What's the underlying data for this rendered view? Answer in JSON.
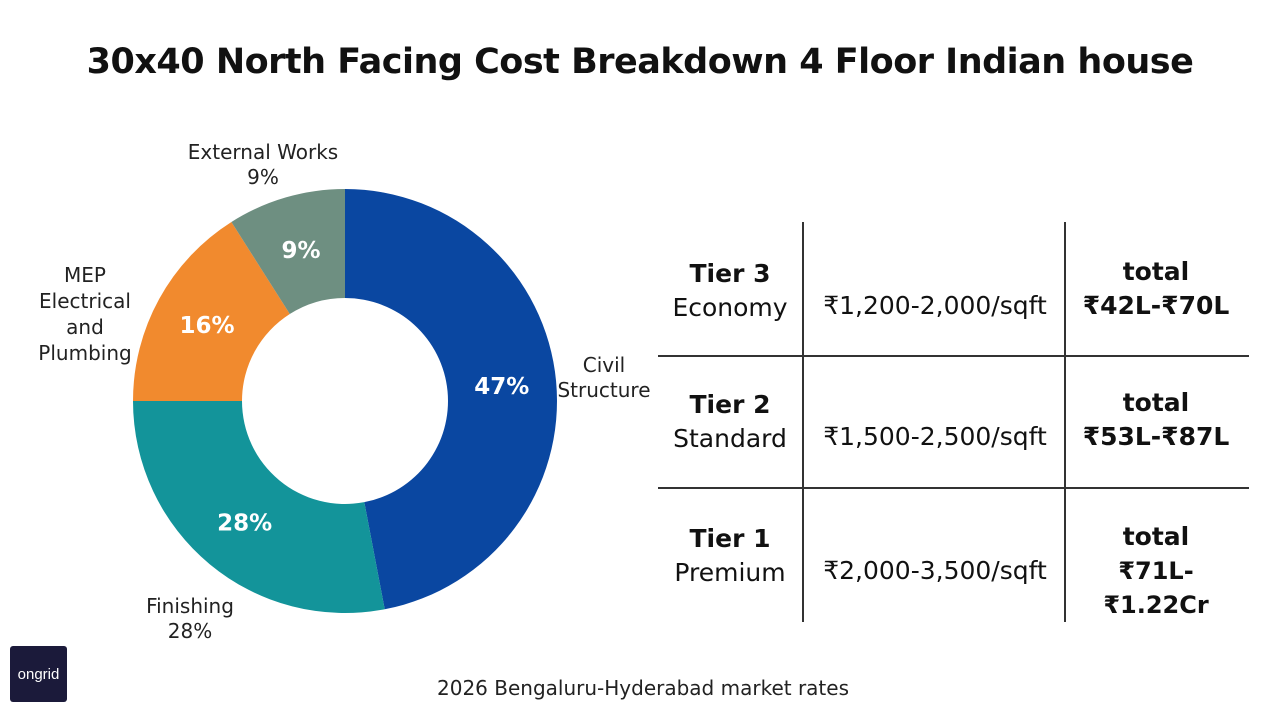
{
  "chart_data": {
    "type": "pie",
    "title": "30x40 North Facing Cost Breakdown 4 Floor Indian house",
    "slices": [
      {
        "label": "Civil Structure",
        "value": 47,
        "inner_label": "47%",
        "outer_lines": [
          "Civil",
          "Structure"
        ],
        "color": "#0a47a1"
      },
      {
        "label": "Finishing",
        "value": 28,
        "inner_label": "28%",
        "outer_lines": [
          "Finishing",
          "28%"
        ],
        "color": "#13949a"
      },
      {
        "label": "MEP Electrical and Plumbing",
        "value": 16,
        "inner_label": "16%",
        "outer_lines": [
          "MEP",
          "Electrical",
          "and",
          "Plumbing"
        ],
        "color": "#f18a2e"
      },
      {
        "label": "External Works",
        "value": 9,
        "inner_label": "9%",
        "outer_lines": [
          "External Works",
          "9%"
        ],
        "color": "#6e8f81"
      }
    ]
  },
  "tiers": [
    {
      "tier": "Tier 3",
      "name": "Economy",
      "rate": "₹1,200-2,000/sqft",
      "total_label": "total",
      "total": "₹42L-₹70L"
    },
    {
      "tier": "Tier 2",
      "name": "Standard",
      "rate": "₹1,500-2,500/sqft",
      "total_label": "total",
      "total": "₹53L-₹87L"
    },
    {
      "tier": "Tier 1",
      "name": "Premium",
      "rate": "₹2,000-3,500/sqft",
      "total_label": "total",
      "total": "₹71L-₹1.22Cr"
    }
  ],
  "logo": {
    "text": "ongrid",
    "color": "#1b1a3a"
  },
  "footer": "2026 Bengaluru-Hyderabad market rates"
}
